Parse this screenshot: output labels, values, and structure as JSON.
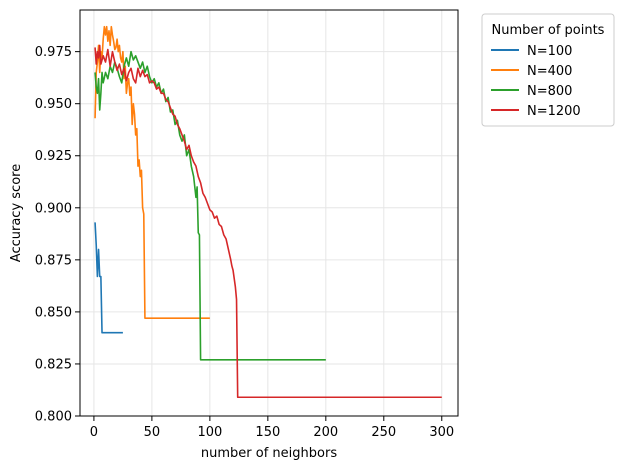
{
  "chart_data": {
    "type": "line",
    "title": "",
    "xlabel": "number of neighbors",
    "ylabel": "Accuracy score",
    "xlim": [
      -12,
      314
    ],
    "ylim": [
      0.8,
      0.995
    ],
    "xticks": [
      0,
      50,
      100,
      150,
      200,
      250,
      300
    ],
    "xtick_labels": [
      "0",
      "50",
      "100",
      "150",
      "200",
      "250",
      "300"
    ],
    "yticks": [
      0.8,
      0.825,
      0.85,
      0.875,
      0.9,
      0.925,
      0.95,
      0.975
    ],
    "ytick_labels": [
      "0.800",
      "0.825",
      "0.850",
      "0.875",
      "0.900",
      "0.925",
      "0.950",
      "0.975"
    ],
    "grid": true,
    "legend": {
      "title": "Number of points",
      "placement": "outside-top-right"
    },
    "series": [
      {
        "name": "N=100",
        "color": "#1f77b4",
        "points": [
          [
            1,
            0.893
          ],
          [
            2,
            0.882
          ],
          [
            3,
            0.867
          ],
          [
            4,
            0.88
          ],
          [
            5,
            0.867
          ],
          [
            6,
            0.867
          ],
          [
            7,
            0.84
          ],
          [
            10,
            0.84
          ],
          [
            15,
            0.84
          ],
          [
            20,
            0.84
          ],
          [
            25,
            0.84
          ]
        ]
      },
      {
        "name": "N=400",
        "color": "#ff7f0e",
        "points": [
          [
            1,
            0.943
          ],
          [
            2,
            0.965
          ],
          [
            3,
            0.97
          ],
          [
            4,
            0.978
          ],
          [
            5,
            0.965
          ],
          [
            6,
            0.975
          ],
          [
            7,
            0.972
          ],
          [
            8,
            0.981
          ],
          [
            9,
            0.987
          ],
          [
            10,
            0.983
          ],
          [
            11,
            0.987
          ],
          [
            12,
            0.98
          ],
          [
            13,
            0.985
          ],
          [
            14,
            0.978
          ],
          [
            15,
            0.987
          ],
          [
            16,
            0.983
          ],
          [
            17,
            0.98
          ],
          [
            18,
            0.976
          ],
          [
            19,
            0.977
          ],
          [
            20,
            0.981
          ],
          [
            21,
            0.975
          ],
          [
            22,
            0.978
          ],
          [
            23,
            0.972
          ],
          [
            24,
            0.97
          ],
          [
            25,
            0.975
          ],
          [
            26,
            0.962
          ],
          [
            27,
            0.968
          ],
          [
            28,
            0.955
          ],
          [
            29,
            0.96
          ],
          [
            30,
            0.962
          ],
          [
            31,
            0.954
          ],
          [
            32,
            0.958
          ],
          [
            33,
            0.94
          ],
          [
            34,
            0.95
          ],
          [
            35,
            0.945
          ],
          [
            36,
            0.935
          ],
          [
            37,
            0.938
          ],
          [
            38,
            0.92
          ],
          [
            39,
            0.923
          ],
          [
            40,
            0.915
          ],
          [
            41,
            0.918
          ],
          [
            42,
            0.9
          ],
          [
            43,
            0.897
          ],
          [
            44,
            0.847
          ],
          [
            50,
            0.847
          ],
          [
            60,
            0.847
          ],
          [
            70,
            0.847
          ],
          [
            80,
            0.847
          ],
          [
            90,
            0.847
          ],
          [
            100,
            0.847
          ]
        ]
      },
      {
        "name": "N=800",
        "color": "#2ca02c",
        "points": [
          [
            1,
            0.965
          ],
          [
            2,
            0.958
          ],
          [
            3,
            0.955
          ],
          [
            4,
            0.962
          ],
          [
            5,
            0.947
          ],
          [
            6,
            0.955
          ],
          [
            7,
            0.965
          ],
          [
            8,
            0.96
          ],
          [
            10,
            0.965
          ],
          [
            12,
            0.962
          ],
          [
            14,
            0.968
          ],
          [
            16,
            0.965
          ],
          [
            18,
            0.97
          ],
          [
            20,
            0.967
          ],
          [
            22,
            0.963
          ],
          [
            24,
            0.96
          ],
          [
            26,
            0.968
          ],
          [
            28,
            0.972
          ],
          [
            30,
            0.968
          ],
          [
            32,
            0.975
          ],
          [
            34,
            0.971
          ],
          [
            36,
            0.973
          ],
          [
            38,
            0.97
          ],
          [
            40,
            0.967
          ],
          [
            42,
            0.97
          ],
          [
            44,
            0.965
          ],
          [
            46,
            0.968
          ],
          [
            48,
            0.963
          ],
          [
            50,
            0.96
          ],
          [
            52,
            0.962
          ],
          [
            54,
            0.958
          ],
          [
            56,
            0.96
          ],
          [
            58,
            0.955
          ],
          [
            60,
            0.957
          ],
          [
            62,
            0.951
          ],
          [
            64,
            0.953
          ],
          [
            66,
            0.946
          ],
          [
            68,
            0.947
          ],
          [
            70,
            0.94
          ],
          [
            72,
            0.942
          ],
          [
            74,
            0.935
          ],
          [
            76,
            0.932
          ],
          [
            78,
            0.935
          ],
          [
            80,
            0.925
          ],
          [
            82,
            0.928
          ],
          [
            84,
            0.92
          ],
          [
            86,
            0.915
          ],
          [
            88,
            0.905
          ],
          [
            89,
            0.91
          ],
          [
            90,
            0.888
          ],
          [
            91,
            0.887
          ],
          [
            92,
            0.827
          ],
          [
            100,
            0.827
          ],
          [
            150,
            0.827
          ],
          [
            200,
            0.827
          ]
        ]
      },
      {
        "name": "N=1200",
        "color": "#d62728",
        "points": [
          [
            1,
            0.977
          ],
          [
            2,
            0.969
          ],
          [
            3,
            0.975
          ],
          [
            4,
            0.972
          ],
          [
            5,
            0.978
          ],
          [
            6,
            0.969
          ],
          [
            8,
            0.973
          ],
          [
            10,
            0.97
          ],
          [
            12,
            0.976
          ],
          [
            14,
            0.968
          ],
          [
            16,
            0.975
          ],
          [
            18,
            0.97
          ],
          [
            20,
            0.966
          ],
          [
            22,
            0.969
          ],
          [
            24,
            0.964
          ],
          [
            26,
            0.967
          ],
          [
            28,
            0.961
          ],
          [
            30,
            0.965
          ],
          [
            32,
            0.967
          ],
          [
            34,
            0.962
          ],
          [
            36,
            0.96
          ],
          [
            38,
            0.967
          ],
          [
            40,
            0.963
          ],
          [
            42,
            0.966
          ],
          [
            44,
            0.963
          ],
          [
            46,
            0.964
          ],
          [
            48,
            0.96
          ],
          [
            50,
            0.961
          ],
          [
            52,
            0.96
          ],
          [
            54,
            0.957
          ],
          [
            56,
            0.958
          ],
          [
            58,
            0.955
          ],
          [
            60,
            0.955
          ],
          [
            62,
            0.952
          ],
          [
            64,
            0.951
          ],
          [
            66,
            0.948
          ],
          [
            68,
            0.945
          ],
          [
            70,
            0.944
          ],
          [
            72,
            0.94
          ],
          [
            74,
            0.938
          ],
          [
            76,
            0.935
          ],
          [
            78,
            0.932
          ],
          [
            80,
            0.928
          ],
          [
            82,
            0.93
          ],
          [
            84,
            0.925
          ],
          [
            86,
            0.922
          ],
          [
            88,
            0.92
          ],
          [
            90,
            0.915
          ],
          [
            92,
            0.912
          ],
          [
            94,
            0.907
          ],
          [
            96,
            0.905
          ],
          [
            98,
            0.902
          ],
          [
            100,
            0.899
          ],
          [
            102,
            0.898
          ],
          [
            104,
            0.895
          ],
          [
            106,
            0.896
          ],
          [
            108,
            0.892
          ],
          [
            110,
            0.891
          ],
          [
            112,
            0.887
          ],
          [
            114,
            0.885
          ],
          [
            116,
            0.88
          ],
          [
            118,
            0.875
          ],
          [
            119,
            0.872
          ],
          [
            120,
            0.87
          ],
          [
            122,
            0.862
          ],
          [
            123,
            0.856
          ],
          [
            124,
            0.809
          ],
          [
            150,
            0.809
          ],
          [
            200,
            0.809
          ],
          [
            250,
            0.809
          ],
          [
            300,
            0.809
          ]
        ]
      }
    ]
  }
}
